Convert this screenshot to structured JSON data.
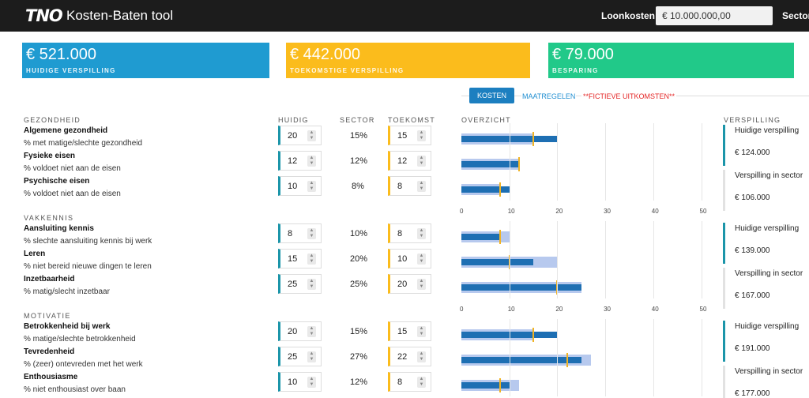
{
  "header": {
    "logo": "TNO",
    "title": "Kosten-Baten tool",
    "loonkosten_label": "Loonkosten",
    "loonkosten_value": "€ 10.000.000,00",
    "sector_label": "Sector"
  },
  "cards": {
    "current": {
      "amount": "€ 521.000",
      "caption": "HUIDIGE VERSPILLING",
      "color": "#1f9bd1"
    },
    "future": {
      "amount": "€ 442.000",
      "caption": "TOEKOMSTIGE VERSPILLING",
      "color": "#fbbc1c"
    },
    "saving": {
      "amount": "€ 79.000",
      "caption": "BESPARING",
      "color": "#21c989"
    }
  },
  "tabs": {
    "kosten": "KOSTEN",
    "maatregelen": "MAATREGELEN",
    "fictief": "**FICTIEVE UITKOMSTEN**"
  },
  "columns": {
    "huidig": "HUIDIG",
    "sector": "SECTOR",
    "toekomst": "TOEKOMST",
    "overzicht": "OVERZICHT",
    "verspilling": "VERSPILLING"
  },
  "axis_ticks": [
    "0",
    "10",
    "20",
    "30",
    "40",
    "50"
  ],
  "sections": [
    {
      "heading": "GEZONDHEID",
      "rows": [
        {
          "name": "Algemene gezondheid",
          "desc": "% met matige/slechte gezondheid",
          "huidig": "20",
          "sector": "15%",
          "toekomst": "15"
        },
        {
          "name": "Fysieke eisen",
          "desc": "% voldoet niet aan de eisen",
          "huidig": "12",
          "sector": "12%",
          "toekomst": "12"
        },
        {
          "name": "Psychische eisen",
          "desc": "% voldoet niet aan de eisen",
          "huidig": "10",
          "sector": "8%",
          "toekomst": "8"
        }
      ],
      "verspilling": {
        "current_label": "Huidige verspilling",
        "current_amount": "€ 124.000",
        "sector_label": "Verspilling in sector",
        "sector_amount": "€ 106.000"
      }
    },
    {
      "heading": "VAKKENNIS",
      "rows": [
        {
          "name": "Aansluiting kennis",
          "desc": "% slechte aansluiting kennis bij werk",
          "huidig": "8",
          "sector": "10%",
          "toekomst": "8"
        },
        {
          "name": "Leren",
          "desc": "% niet bereid nieuwe dingen te leren",
          "huidig": "15",
          "sector": "20%",
          "toekomst": "10"
        },
        {
          "name": "Inzetbaarheid",
          "desc": "% matig/slecht inzetbaar",
          "huidig": "25",
          "sector": "25%",
          "toekomst": "20"
        }
      ],
      "verspilling": {
        "current_label": "Huidige verspilling",
        "current_amount": "€ 139.000",
        "sector_label": "Verspilling in sector",
        "sector_amount": "€ 167.000"
      }
    },
    {
      "heading": "MOTIVATIE",
      "rows": [
        {
          "name": "Betrokkenheid bij werk",
          "desc": "% matige/slechte betrokkenheid",
          "huidig": "20",
          "sector": "15%",
          "toekomst": "15"
        },
        {
          "name": "Tevredenheid",
          "desc": "% (zeer) ontevreden met het werk",
          "huidig": "25",
          "sector": "27%",
          "toekomst": "22"
        },
        {
          "name": "Enthousiasme",
          "desc": "% niet enthousiast over baan",
          "huidig": "10",
          "sector": "12%",
          "toekomst": "8"
        }
      ],
      "verspilling": {
        "current_label": "Huidige verspilling",
        "current_amount": "€ 191.000",
        "sector_label": "Verspilling in sector",
        "sector_amount": "€ 177.000"
      }
    }
  ],
  "chart_data": {
    "type": "bar",
    "xlim": [
      0,
      50
    ],
    "series": [
      {
        "name": "Sector",
        "values": [
          15,
          12,
          8,
          10,
          20,
          25,
          15,
          27,
          12
        ],
        "color": "#b7c9ee"
      },
      {
        "name": "Huidig",
        "values": [
          20,
          12,
          10,
          8,
          15,
          25,
          20,
          25,
          10
        ],
        "color": "#1e6fb3"
      },
      {
        "name": "Toekomst",
        "values": [
          15,
          12,
          8,
          8,
          10,
          20,
          15,
          22,
          8
        ],
        "color": "#f0b324"
      }
    ]
  }
}
